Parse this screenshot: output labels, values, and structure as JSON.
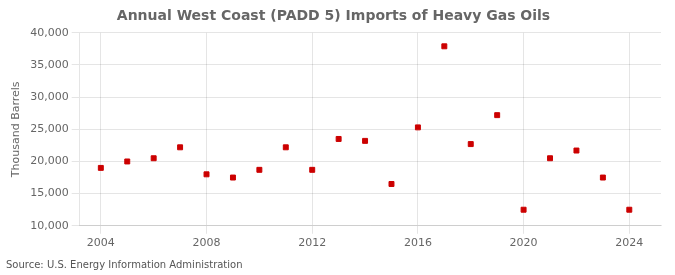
{
  "chart_data": {
    "type": "scatter",
    "title": "Annual West Coast (PADD 5) Imports of Heavy Gas Oils",
    "ylabel": "Thousand Barrels",
    "source": "Source: U.S. Energy Information Administration",
    "x": [
      2004,
      2005,
      2006,
      2007,
      2008,
      2009,
      2010,
      2011,
      2012,
      2013,
      2014,
      2015,
      2016,
      2017,
      2018,
      2019,
      2020,
      2021,
      2022,
      2023,
      2024
    ],
    "values": [
      19000,
      20000,
      20500,
      22200,
      18000,
      17500,
      18700,
      22200,
      18700,
      23500,
      23200,
      16500,
      25300,
      37900,
      22700,
      27200,
      12500,
      20500,
      21700,
      17500,
      12500
    ],
    "color": "#cc0000",
    "marker": "square",
    "xlim": [
      2003.2,
      2025.2
    ],
    "ylim": [
      10000,
      40000
    ],
    "xticks": [
      2004,
      2008,
      2012,
      2016,
      2020,
      2024
    ],
    "yticks": [
      {
        "value": 10000,
        "label": "10,000"
      },
      {
        "value": 15000,
        "label": "15,000"
      },
      {
        "value": 20000,
        "label": "20,000"
      },
      {
        "value": 25000,
        "label": "25,000"
      },
      {
        "value": 30000,
        "label": "30,000"
      },
      {
        "value": 35000,
        "label": "35,000"
      },
      {
        "value": 40000,
        "label": "40,000"
      }
    ],
    "grid": true
  }
}
